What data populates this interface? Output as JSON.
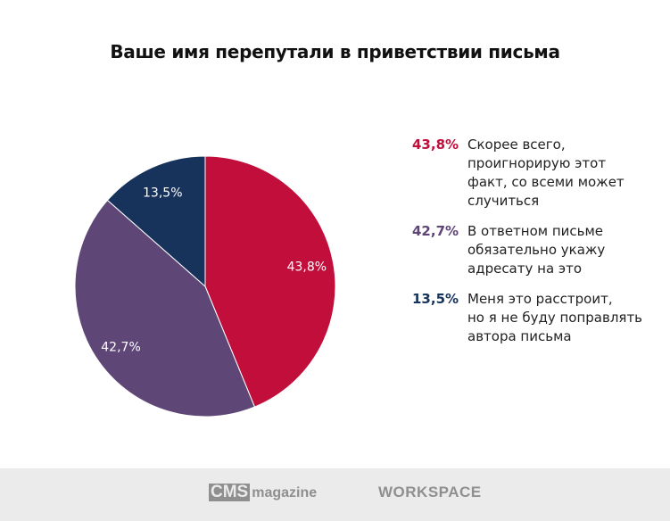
{
  "chart_data": {
    "type": "pie",
    "title": "Ваше имя перепутали в приветствии письма",
    "start": "top",
    "direction": "clockwise",
    "slices": [
      {
        "label": "Скорее всего,\nпроигнорирую этот\nфакт, со всеми может\nслучиться",
        "value": 43.8,
        "display": "43,8%",
        "color": "#c20e3a"
      },
      {
        "label": "В ответном письме\nобязательно укажу\nадресату на это",
        "value": 42.7,
        "display": "42,7%",
        "color": "#5e4677"
      },
      {
        "label": "Меня это расстроит,\nно я не буду поправлять\nавтора письма",
        "value": 13.5,
        "display": "13,5%",
        "color": "#17335b"
      }
    ],
    "legend_position": "right"
  },
  "footer": {
    "logo_cms_box": "CMS",
    "logo_cms_text": "magazine",
    "logo_workspace": "WORKSPACE"
  }
}
